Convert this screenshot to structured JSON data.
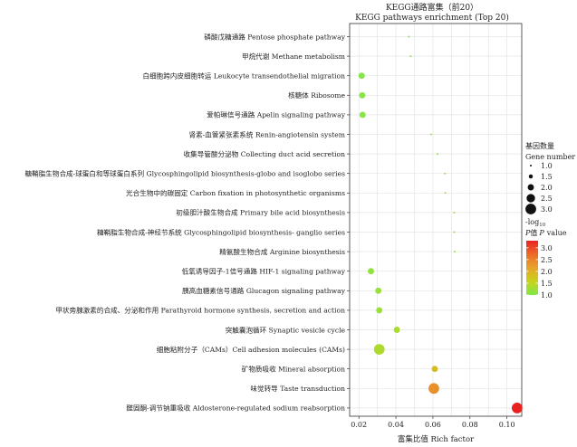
{
  "chart_data": {
    "type": "scatter",
    "title": "KEGG通路富集（前20）",
    "subtitle": "KEGG pathways enrichment (Top 20)",
    "xlabel": "富集比值 Rich factor",
    "xlim": [
      0.015,
      0.108
    ],
    "xticks": [
      0.02,
      0.04,
      0.06,
      0.08,
      0.1
    ],
    "xtick_labels": [
      "0.02",
      "0.04",
      "0.06",
      "0.08",
      "0.10"
    ],
    "grid": true,
    "points": [
      {
        "label": "磷酸戊糖通路 Pentose phosphate pathway",
        "x": 0.047,
        "gene_number": 1,
        "neg_log10_p": 1.1
      },
      {
        "label": "甲烷代谢 Methane metabolism",
        "x": 0.048,
        "gene_number": 1,
        "neg_log10_p": 1.1
      },
      {
        "label": "白细胞跨内皮细胞转运 Leukocyte transendothelial migration",
        "x": 0.0215,
        "gene_number": 2,
        "neg_log10_p": 1.05
      },
      {
        "label": "核糖体 Ribosome",
        "x": 0.0218,
        "gene_number": 2,
        "neg_log10_p": 1.05
      },
      {
        "label": "爱帕琳信号通路 Apelin signaling pathway",
        "x": 0.022,
        "gene_number": 2,
        "neg_log10_p": 1.05
      },
      {
        "label": "肾素-血管紧张素系统 Renin-angiotensin system",
        "x": 0.059,
        "gene_number": 1,
        "neg_log10_p": 1.2
      },
      {
        "label": "收集导管酸分泌物 Collecting duct acid secretion",
        "x": 0.0625,
        "gene_number": 1,
        "neg_log10_p": 1.2
      },
      {
        "label": "糖鞘脂生物合成-球蛋白和等球蛋白系列 Glycosphingolipid biosynthesis-globo and isoglobo series",
        "x": 0.0665,
        "gene_number": 1,
        "neg_log10_p": 1.2
      },
      {
        "label": "光合生物中的碳固定 Carbon fixation in photosynthetic organisms",
        "x": 0.0667,
        "gene_number": 1,
        "neg_log10_p": 1.2
      },
      {
        "label": "初级胆汁酸生物合成 Primary bile acid biosynthesis",
        "x": 0.0715,
        "gene_number": 1,
        "neg_log10_p": 1.2
      },
      {
        "label": "糖鞘脂生物合成-神经节系统 Glycosphingolipid biosynthesis- ganglio series",
        "x": 0.0715,
        "gene_number": 1,
        "neg_log10_p": 1.2
      },
      {
        "label": "精氨酸生物合成 Arginine biosynthesis",
        "x": 0.0718,
        "gene_number": 1,
        "neg_log10_p": 1.2
      },
      {
        "label": "低氧诱导因子-1信号通路 HIF-1 signaling pathway",
        "x": 0.0265,
        "gene_number": 2,
        "neg_log10_p": 1.15
      },
      {
        "label": "胰高血糖素信号通路 Glucagon signaling pathway",
        "x": 0.0305,
        "gene_number": 2,
        "neg_log10_p": 1.2
      },
      {
        "label": "甲状旁腺激素的合成、分泌和作用 Parathyroid hormone synthesis, secretion and action",
        "x": 0.031,
        "gene_number": 2,
        "neg_log10_p": 1.2
      },
      {
        "label": "突触囊泡循环 Synaptic vesicle cycle",
        "x": 0.0405,
        "gene_number": 2,
        "neg_log10_p": 1.35
      },
      {
        "label": "细胞粘附分子（CAMs）Cell adhesion molecules (CAMs)",
        "x": 0.031,
        "gene_number": 3,
        "neg_log10_p": 1.35
      },
      {
        "label": "矿物质吸收 Mineral absorption",
        "x": 0.061,
        "gene_number": 2,
        "neg_log10_p": 1.85
      },
      {
        "label": "味觉转导 Taste transduction",
        "x": 0.0605,
        "gene_number": 3,
        "neg_log10_p": 2.35
      },
      {
        "label": "醛固酮-调节钠重吸收 Aldosterone-regulated sodium reabsorption",
        "x": 0.1055,
        "gene_number": 3,
        "neg_log10_p": 3.3
      }
    ],
    "size_legend": {
      "title_cn": "基因数量",
      "title_en": "Gene number",
      "values": [
        1.0,
        1.5,
        2.0,
        2.5,
        3.0
      ],
      "labels": [
        "1.0",
        "1.5",
        "2.0",
        "2.5",
        "3.0"
      ]
    },
    "color_legend": {
      "title_line1": "-log",
      "title_sub": "10",
      "title_line2_italic_p": "P",
      "title_line2_cn": "值",
      "title_line2_italic_p2": "P",
      "title_line2_end": "value",
      "range": [
        1.0,
        3.3
      ],
      "ticks": [
        1.0,
        1.5,
        2.0,
        2.5,
        3.0
      ],
      "tick_labels": [
        "1.0",
        "1.5",
        "2.0",
        "2.5",
        "3.0"
      ],
      "colors": [
        "#7fe84a",
        "#c9d21c",
        "#e5a52a",
        "#ee6a2a",
        "#e8231f"
      ]
    }
  }
}
